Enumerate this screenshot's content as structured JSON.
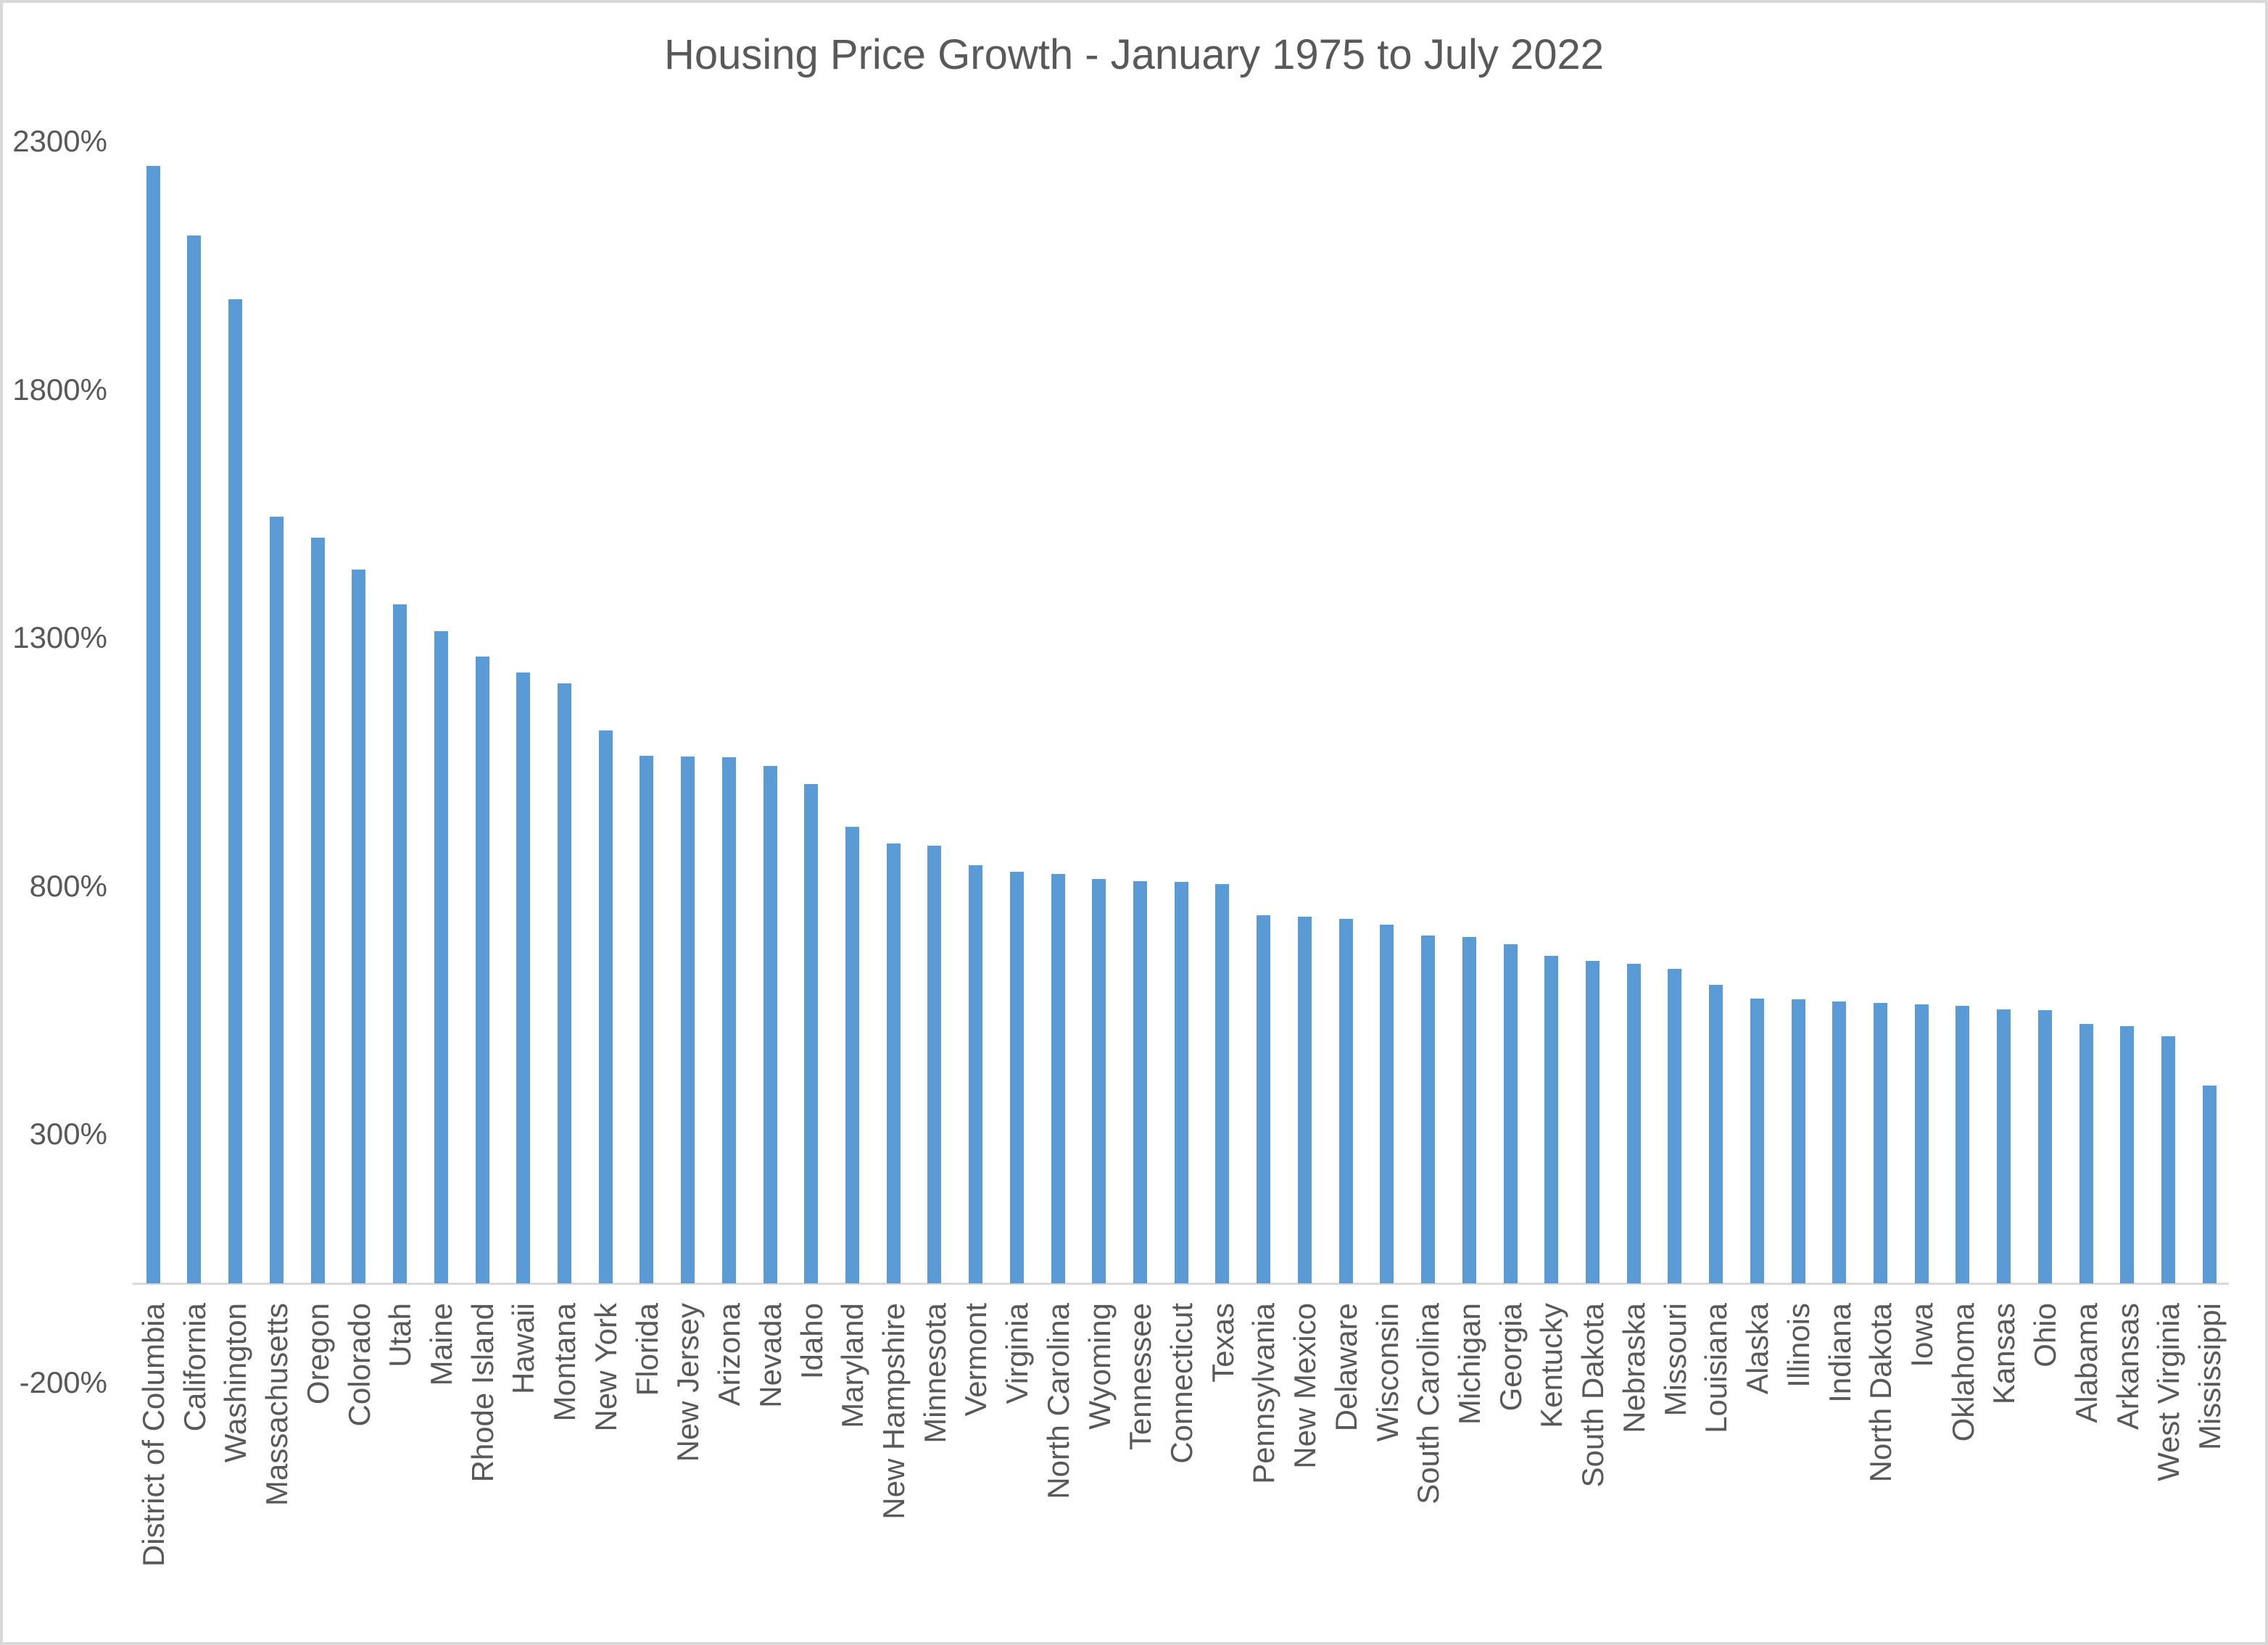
{
  "chart_data": {
    "type": "bar",
    "title": "Housing Price Growth - January 1975 to July 2022",
    "categories": [
      "District of Columbia",
      "California",
      "Washington",
      "Massachusetts",
      "Oregon",
      "Colorado",
      "Utah",
      "Maine",
      "Rhode Island",
      "Hawaii",
      "Montana",
      "New York",
      "Florida",
      "New Jersey",
      "Arizona",
      "Nevada",
      "Idaho",
      "Maryland",
      "New Hampshire",
      "Minnesota",
      "Vermont",
      "Virginia",
      "North Carolina",
      "Wyoming",
      "Tennessee",
      "Connecticut",
      "Texas",
      "Pennsylvania",
      "New Mexico",
      "Delaware",
      "Wisconsin",
      "South Carolina",
      "Michigan",
      "Georgia",
      "Kentucky",
      "South Dakota",
      "Nebraska",
      "Missouri",
      "Louisiana",
      "Alaska",
      "Illinois",
      "Indiana",
      "North Dakota",
      "Iowa",
      "Oklahoma",
      "Kansas",
      "Ohio",
      "Alabama",
      "Arkansas",
      "West Virginia",
      "Mississippi"
    ],
    "values": [
      2250,
      2111,
      1982,
      1544,
      1502,
      1438,
      1367,
      1314,
      1263,
      1231,
      1209,
      1113,
      1063,
      1061,
      1060,
      1042,
      1005,
      919,
      886,
      881,
      842,
      829,
      824,
      815,
      810,
      809,
      804,
      741,
      738,
      734,
      722,
      700,
      698,
      683,
      659,
      650,
      644,
      634,
      601,
      573,
      572,
      567,
      565,
      562,
      559,
      552,
      550,
      523,
      518,
      498,
      398
    ],
    "value_unit": "%",
    "yticks": [
      {
        "label": "2300%",
        "value": 2300
      },
      {
        "label": "1800%",
        "value": 1800
      },
      {
        "label": "1300%",
        "value": 1300
      },
      {
        "label": "800%",
        "value": 800
      },
      {
        "label": "300%",
        "value": 300
      },
      {
        "label": "-200%",
        "value": -200
      }
    ],
    "ylim": [
      -200,
      2300
    ],
    "grid": false,
    "legend": "none",
    "bar_color": "#5b9bd5",
    "text_color": "#595959",
    "axis_line_color": "#d9d9d9"
  }
}
